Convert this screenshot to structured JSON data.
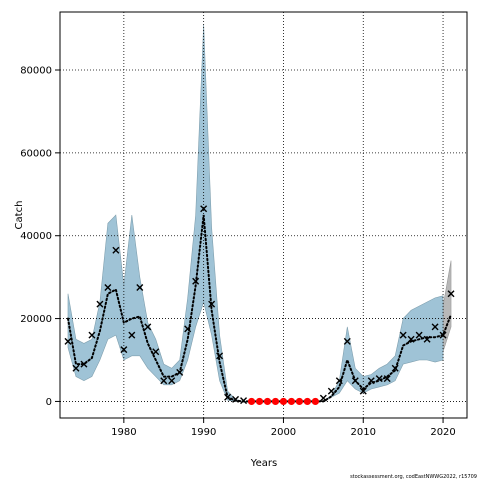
{
  "chart_data": {
    "type": "line",
    "xlabel": "Years",
    "ylabel": "Catch",
    "xlim": [
      1972,
      2023
    ],
    "ylim": [
      -4000,
      94000
    ],
    "x_ticks": [
      1980,
      1990,
      2000,
      2010,
      2020
    ],
    "y_ticks": [
      0,
      20000,
      40000,
      60000,
      80000
    ],
    "grid": true,
    "legend": "none",
    "colors": {
      "band": "#9fc3d6",
      "band_edge": "#7f9fae",
      "projection_band": "#b8b8b8",
      "estimate_line": "#000000",
      "observed_marker": "#000000",
      "excluded_marker": "#ff0000"
    },
    "band": {
      "years": [
        1973,
        1974,
        1975,
        1976,
        1977,
        1978,
        1979,
        1980,
        1981,
        1982,
        1983,
        1984,
        1985,
        1986,
        1987,
        1988,
        1989,
        1990,
        1991,
        1992,
        1993,
        1994,
        1995,
        1996,
        1997,
        1998,
        1999,
        2000,
        2001,
        2002,
        2003,
        2004,
        2005,
        2006,
        2007,
        2008,
        2009,
        2010,
        2011,
        2012,
        2013,
        2014,
        2015,
        2016,
        2017,
        2018,
        2019,
        2020
      ],
      "lower": [
        13000,
        6000,
        5000,
        6000,
        10000,
        15000,
        16000,
        10000,
        11000,
        11000,
        8000,
        6000,
        4000,
        4000,
        5000,
        10000,
        18000,
        24000,
        16000,
        5000,
        300,
        0,
        0,
        0,
        0,
        0,
        0,
        0,
        0,
        0,
        0,
        0,
        0,
        1000,
        2000,
        5000,
        3000,
        2000,
        3000,
        3500,
        4000,
        5000,
        9000,
        9500,
        10000,
        10000,
        9500,
        10000
      ],
      "upper": [
        26000,
        15000,
        14000,
        15000,
        24000,
        43000,
        45000,
        28000,
        45000,
        30000,
        19000,
        15000,
        9000,
        8000,
        10000,
        25000,
        45000,
        91000,
        42000,
        16000,
        2500,
        500,
        0,
        0,
        0,
        0,
        0,
        0,
        0,
        0,
        0,
        0,
        0,
        1500,
        5000,
        18000,
        8000,
        6000,
        6500,
        8000,
        9000,
        11000,
        20000,
        22000,
        23000,
        24000,
        25000,
        25500
      ]
    },
    "projection_band": {
      "years": [
        2020,
        2021
      ],
      "lower": [
        12000,
        18000
      ],
      "upper": [
        23000,
        34000
      ]
    },
    "series": [
      {
        "role": "estimate",
        "style": "dotted",
        "x": [
          1973,
          1974,
          1975,
          1976,
          1977,
          1978,
          1979,
          1980,
          1981,
          1982,
          1983,
          1984,
          1985,
          1986,
          1987,
          1988,
          1989,
          1990,
          1991,
          1992,
          1993,
          1994,
          1995,
          1996,
          1997,
          1998,
          1999,
          2000,
          2001,
          2002,
          2003,
          2004,
          2005,
          2006,
          2007,
          2008,
          2009,
          2010,
          2011,
          2012,
          2013,
          2014,
          2015,
          2016,
          2017,
          2018,
          2019,
          2020,
          2021
        ],
        "y": [
          20000,
          9000,
          9000,
          10500,
          17000,
          26000,
          27000,
          19000,
          20000,
          20500,
          14000,
          10000,
          6000,
          6000,
          7000,
          15000,
          28000,
          45000,
          22000,
          9500,
          1000,
          200,
          0,
          0,
          0,
          0,
          0,
          0,
          0,
          0,
          0,
          0,
          0,
          1200,
          3500,
          10000,
          5000,
          3000,
          4500,
          5000,
          6000,
          7500,
          13500,
          14500,
          15000,
          15500,
          15500,
          16000,
          21000
        ]
      },
      {
        "role": "observed",
        "marker": "x",
        "x": [
          1973,
          1974,
          1975,
          1976,
          1977,
          1978,
          1979,
          1980,
          1981,
          1982,
          1983,
          1984,
          1985,
          1986,
          1987,
          1988,
          1989,
          1990,
          1991,
          1992,
          1993,
          1994,
          1995,
          2005,
          2006,
          2007,
          2008,
          2009,
          2010,
          2011,
          2012,
          2013,
          2014,
          2015,
          2016,
          2017,
          2018,
          2019,
          2020,
          2021
        ],
        "y": [
          14500,
          8000,
          9000,
          16000,
          23500,
          27500,
          36500,
          12500,
          16000,
          27500,
          18000,
          12000,
          5000,
          5000,
          7000,
          17500,
          29000,
          46500,
          23500,
          11000,
          1000,
          500,
          200,
          800,
          2500,
          5000,
          14500,
          5000,
          2500,
          5000,
          5500,
          5500,
          8000,
          16000,
          15000,
          16000,
          15000,
          18000,
          16000,
          26000
        ]
      },
      {
        "role": "excluded",
        "marker": "circle",
        "x": [
          1996,
          1997,
          1998,
          1999,
          2000,
          2001,
          2002,
          2003,
          2004
        ],
        "y": [
          0,
          0,
          0,
          0,
          0,
          0,
          0,
          0,
          0
        ]
      }
    ]
  },
  "footer_text": "stockassessment.org, codEastNWWG2022, r15709"
}
